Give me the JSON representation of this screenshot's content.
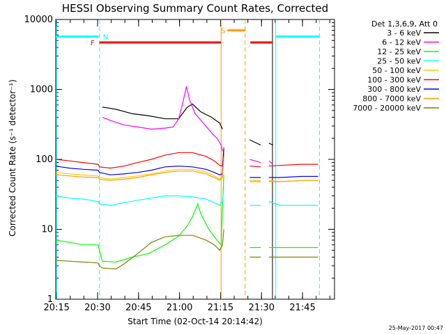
{
  "chart_data": {
    "type": "line",
    "title": "HESSI Observing Summary Count Rates, Corrected",
    "xlabel": "Start Time (02-Oct-14 20:14:42)",
    "ylabel": "Corrected Count Rate (s⁻¹ detector⁻¹)",
    "yscale": "log",
    "ylim": [
      1,
      10000
    ],
    "xlim_minutes": [
      0,
      102
    ],
    "x_tick_labels": [
      "20:15",
      "20:30",
      "20:45",
      "21:00",
      "21:15",
      "21:30",
      "21:45"
    ],
    "x_tick_minutes": [
      0.3,
      15.3,
      30.3,
      45.3,
      60.3,
      75.3,
      90.3
    ],
    "y_tick_labels": [
      "1",
      "10",
      "100",
      "1000",
      "10000"
    ],
    "y_tick_values": [
      1,
      10,
      100,
      1000,
      10000
    ],
    "legend_title": "Det 1,3,6,9, Att 0",
    "legend_position": "right",
    "series": [
      {
        "name": "3 - 6 keV",
        "color": "#000000",
        "points": [
          [
            17,
            560
          ],
          [
            22,
            520
          ],
          [
            28,
            450
          ],
          [
            34,
            420
          ],
          [
            40,
            380
          ],
          [
            45,
            380
          ],
          [
            48,
            550
          ],
          [
            50,
            620
          ],
          [
            53,
            480
          ],
          [
            57,
            400
          ],
          [
            60,
            330
          ],
          [
            61,
            270
          ],
          null,
          [
            71,
            190
          ],
          [
            75,
            160
          ],
          null,
          [
            78,
            170
          ],
          [
            79.5,
            160
          ]
        ]
      },
      {
        "name": "6 - 12 keV",
        "color": "#ff00ff",
        "points": [
          [
            17,
            400
          ],
          [
            20,
            360
          ],
          [
            25,
            310
          ],
          [
            30,
            290
          ],
          [
            35,
            270
          ],
          [
            40,
            280
          ],
          [
            43,
            290
          ],
          [
            45,
            380
          ],
          [
            46.5,
            650
          ],
          [
            47.8,
            1100
          ],
          [
            49,
            700
          ],
          [
            51,
            450
          ],
          [
            54,
            330
          ],
          [
            57,
            240
          ],
          [
            59,
            200
          ],
          [
            60.5,
            160
          ],
          [
            61,
            130
          ],
          null,
          [
            71,
            100
          ],
          [
            75,
            90
          ],
          null,
          [
            78,
            95
          ],
          [
            79.5,
            85
          ]
        ]
      },
      {
        "name": "12 - 25 keV",
        "color": "#00ff00",
        "points": [
          [
            0,
            7
          ],
          [
            5,
            6.5
          ],
          [
            10,
            6
          ],
          [
            15.5,
            6
          ],
          [
            16,
            5
          ],
          [
            17,
            3.5
          ],
          [
            22,
            3.4
          ],
          [
            28,
            4
          ],
          [
            34,
            4.5
          ],
          [
            40,
            6
          ],
          [
            45,
            8
          ],
          [
            48,
            11
          ],
          [
            50,
            15
          ],
          [
            52,
            23
          ],
          [
            53,
            17
          ],
          [
            56,
            10
          ],
          [
            59,
            7
          ],
          [
            60.5,
            6
          ],
          [
            61,
            20
          ],
          [
            61.5,
            60
          ],
          null,
          [
            71,
            5.5
          ],
          [
            75,
            5.5
          ],
          null,
          [
            78,
            5.5
          ],
          [
            85,
            5.5
          ],
          [
            96,
            5.5
          ]
        ]
      },
      {
        "name": "25 - 50 keV",
        "color": "#00ffff",
        "points": [
          [
            0,
            30
          ],
          [
            5,
            28
          ],
          [
            10,
            27
          ],
          [
            15.5,
            25
          ],
          [
            16,
            23
          ],
          [
            20,
            22
          ],
          [
            25,
            24
          ],
          [
            30,
            26
          ],
          [
            35,
            28
          ],
          [
            40,
            30
          ],
          [
            45,
            30
          ],
          [
            50,
            29
          ],
          [
            55,
            27
          ],
          [
            58,
            24
          ],
          [
            60,
            22
          ],
          [
            61,
            25
          ],
          [
            61.5,
            40
          ],
          null,
          [
            71,
            22
          ],
          [
            75,
            22
          ],
          null,
          [
            78,
            25
          ],
          [
            82,
            22
          ],
          [
            90,
            22
          ],
          [
            96,
            22
          ]
        ]
      },
      {
        "name": "50 - 100 keV",
        "color": "#ffcc00",
        "points": [
          [
            0,
            65
          ],
          [
            5,
            62
          ],
          [
            10,
            60
          ],
          [
            15.5,
            58
          ],
          [
            16,
            55
          ],
          [
            20,
            52
          ],
          [
            25,
            55
          ],
          [
            30,
            58
          ],
          [
            35,
            62
          ],
          [
            40,
            68
          ],
          [
            45,
            72
          ],
          [
            50,
            72
          ],
          [
            55,
            66
          ],
          [
            58,
            58
          ],
          [
            60,
            52
          ],
          [
            61,
            60
          ],
          [
            61.5,
            120
          ],
          null,
          [
            71,
            50
          ],
          [
            75,
            50
          ],
          null,
          [
            78,
            50
          ],
          [
            82,
            48
          ],
          [
            90,
            50
          ],
          [
            96,
            50
          ]
        ]
      },
      {
        "name": "100 - 300 keV",
        "color": "#ff0000",
        "points": [
          [
            0,
            100
          ],
          [
            5,
            95
          ],
          [
            10,
            90
          ],
          [
            15.5,
            85
          ],
          [
            16,
            78
          ],
          [
            20,
            75
          ],
          [
            25,
            80
          ],
          [
            30,
            90
          ],
          [
            35,
            100
          ],
          [
            40,
            115
          ],
          [
            45,
            125
          ],
          [
            50,
            125
          ],
          [
            55,
            110
          ],
          [
            58,
            95
          ],
          [
            60,
            82
          ],
          [
            61,
            80
          ],
          [
            61.5,
            150
          ],
          null,
          [
            71,
            80
          ],
          [
            75,
            78
          ],
          null,
          [
            78,
            80
          ],
          [
            82,
            82
          ],
          [
            90,
            85
          ],
          [
            96,
            85
          ]
        ]
      },
      {
        "name": "300 - 800 keV",
        "color": "#0000ff",
        "points": [
          [
            0,
            80
          ],
          [
            5,
            75
          ],
          [
            10,
            72
          ],
          [
            15.5,
            70
          ],
          [
            16,
            65
          ],
          [
            20,
            60
          ],
          [
            25,
            62
          ],
          [
            30,
            65
          ],
          [
            35,
            70
          ],
          [
            40,
            78
          ],
          [
            45,
            80
          ],
          [
            50,
            78
          ],
          [
            55,
            72
          ],
          [
            58,
            65
          ],
          [
            60,
            60
          ],
          [
            61,
            62
          ],
          [
            61.5,
            140
          ],
          null,
          [
            71,
            55
          ],
          [
            75,
            55
          ],
          null,
          [
            78,
            55
          ],
          [
            82,
            55
          ],
          [
            90,
            57
          ],
          [
            96,
            57
          ]
        ]
      },
      {
        "name": "800 - 7000 keV",
        "color": "#ff9900",
        "points": [
          [
            0,
            60
          ],
          [
            5,
            58
          ],
          [
            10,
            56
          ],
          [
            15.5,
            55
          ],
          [
            16,
            52
          ],
          [
            20,
            50
          ],
          [
            25,
            52
          ],
          [
            30,
            55
          ],
          [
            35,
            60
          ],
          [
            40,
            65
          ],
          [
            45,
            68
          ],
          [
            50,
            68
          ],
          [
            55,
            62
          ],
          [
            58,
            55
          ],
          [
            60,
            50
          ],
          [
            61,
            55
          ],
          [
            61.5,
            110
          ],
          null,
          [
            71,
            48
          ],
          [
            75,
            48
          ],
          null,
          [
            78,
            48
          ],
          [
            82,
            48
          ],
          [
            90,
            50
          ],
          [
            96,
            50
          ]
        ]
      },
      {
        "name": "7000 - 20000 keV",
        "color": "#808000",
        "points": [
          [
            0,
            3.6
          ],
          [
            5,
            3.5
          ],
          [
            10,
            3.4
          ],
          [
            15.5,
            3.3
          ],
          [
            16,
            3
          ],
          [
            17,
            2.8
          ],
          [
            22,
            2.7
          ],
          [
            25,
            3.2
          ],
          [
            30,
            4.5
          ],
          [
            35,
            6.5
          ],
          [
            40,
            7.8
          ],
          [
            45,
            8.2
          ],
          [
            50,
            8.2
          ],
          [
            55,
            7
          ],
          [
            58,
            6
          ],
          [
            60,
            5
          ],
          [
            61,
            6
          ],
          [
            61.5,
            10
          ],
          null,
          [
            71,
            4
          ],
          [
            75,
            4
          ],
          null,
          [
            78,
            4
          ],
          [
            82,
            4
          ],
          [
            90,
            4
          ],
          [
            96,
            4
          ]
        ]
      }
    ],
    "annotations": [
      {
        "label": "N",
        "color": "#00ffff",
        "level": 5700,
        "segments": [
          [
            0,
            15.7
          ],
          [
            80.5,
            96.5
          ]
        ]
      },
      {
        "label": "F",
        "color": "#ff0000",
        "level": 4700,
        "segments": [
          [
            16,
            60.5
          ],
          [
            71.2,
            79.3
          ]
        ]
      },
      {
        "label": "S",
        "color": "#ff9900",
        "level": 7000,
        "segments": [
          [
            62.8,
            69.3
          ]
        ]
      }
    ],
    "vertical_markers": [
      {
        "minute": 0.3,
        "color": "#00ffff",
        "style": "solid"
      },
      {
        "minute": 16,
        "color": "#00ffff",
        "style": "dashed"
      },
      {
        "minute": 60.5,
        "color": "#ff9900",
        "style": "solid"
      },
      {
        "minute": 69.3,
        "color": "#ff9900",
        "style": "dashed"
      },
      {
        "minute": 79.3,
        "color": "#000000",
        "style": "solid"
      },
      {
        "minute": 80.5,
        "color": "#00ffff",
        "style": "solid"
      },
      {
        "minute": 96.5,
        "color": "#00ffff",
        "style": "dashed"
      }
    ]
  },
  "footer": {
    "timestamp": "25-May-2017 00:47"
  }
}
